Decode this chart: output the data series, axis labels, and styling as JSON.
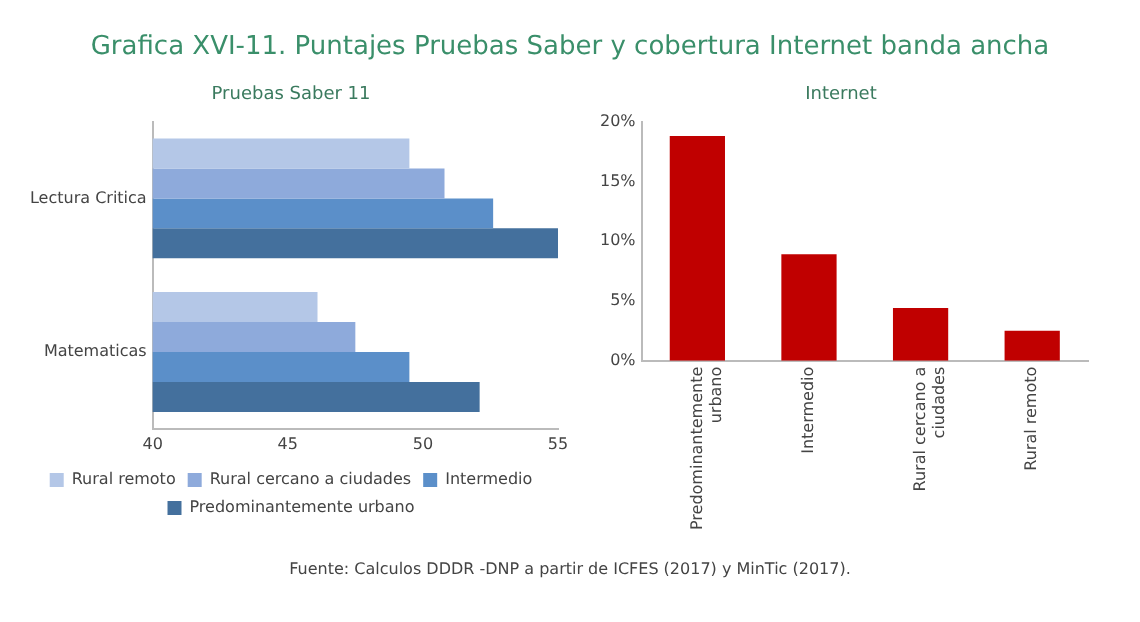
{
  "chart_data": [
    {
      "type": "bar",
      "orientation": "horizontal",
      "title": "Pruebas Saber 11",
      "annotations": [
        "Grafica XVI-11. Puntajes Pruebas Saber y cobertura Internet banda ancha"
      ],
      "categories": [
        "Lectura Critica",
        "Matematicas"
      ],
      "series": [
        {
          "name": "Rural remoto",
          "color": "#b4c7e7",
          "values": [
            49.5,
            46.1
          ]
        },
        {
          "name": "Rural cercano a ciudades",
          "color": "#8eaadb",
          "values": [
            50.8,
            47.5
          ]
        },
        {
          "name": "Intermedio",
          "color": "#5b8fc9",
          "values": [
            52.6,
            49.5
          ]
        },
        {
          "name": "Predominantemente urbano",
          "color": "#44709d",
          "values": [
            55.0,
            52.1
          ]
        }
      ],
      "xlim": [
        40,
        55
      ],
      "xticks": [
        40,
        45,
        50,
        55
      ],
      "grid": false,
      "legend": "bottom"
    },
    {
      "type": "bar",
      "title": "Internet",
      "annotations": [
        "Fuente: Calculos DDDR -DNP a partir de ICFES (2017) y MinTic (2017)."
      ],
      "categories": [
        "Predominantemente urbano",
        "Intermedio",
        "Rural cercano a ciudades",
        "Rural remoto"
      ],
      "series": [
        {
          "color": "#c00000",
          "values": [
            18.8,
            8.9,
            4.4,
            2.5
          ]
        }
      ],
      "ylim": [
        0,
        20
      ],
      "yticks": [
        {
          "value": 0,
          "label": "0%"
        },
        {
          "value": 5,
          "label": "5%"
        },
        {
          "value": 10,
          "label": "10%"
        },
        {
          "value": 15,
          "label": "15%"
        },
        {
          "value": 20,
          "label": "20%"
        }
      ],
      "grid": false,
      "legend": false
    }
  ]
}
